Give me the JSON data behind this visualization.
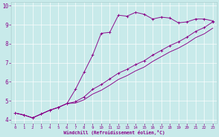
{
  "xlabel": "Windchill (Refroidissement éolien,°C)",
  "bg_color": "#c8eaea",
  "grid_color": "#aacccc",
  "line_color": "#880088",
  "xlim": [
    -0.5,
    23.5
  ],
  "ylim": [
    3.8,
    10.2
  ],
  "xticks": [
    0,
    1,
    2,
    3,
    4,
    5,
    6,
    7,
    8,
    9,
    10,
    11,
    12,
    13,
    14,
    15,
    16,
    17,
    18,
    19,
    20,
    21,
    22,
    23
  ],
  "yticks": [
    4,
    5,
    6,
    7,
    8,
    9,
    10
  ],
  "curve1_x": [
    0,
    1,
    2,
    3,
    4,
    5,
    6,
    7,
    8,
    9,
    10,
    11,
    12,
    13,
    14,
    15,
    16,
    17,
    18,
    19,
    20,
    21,
    22,
    23
  ],
  "curve1_y": [
    4.35,
    4.25,
    4.1,
    4.3,
    4.5,
    4.65,
    4.85,
    5.6,
    6.5,
    7.4,
    8.55,
    8.6,
    9.5,
    9.45,
    9.65,
    9.55,
    9.3,
    9.4,
    9.35,
    9.1,
    9.15,
    9.3,
    9.3,
    9.2
  ],
  "curve2_x": [
    0,
    1,
    2,
    3,
    4,
    5,
    6,
    7,
    8,
    9,
    10,
    11,
    12,
    13,
    14,
    15,
    16,
    17,
    18,
    19,
    20,
    21,
    22,
    23
  ],
  "curve2_y": [
    4.35,
    4.25,
    4.1,
    4.3,
    4.5,
    4.65,
    4.85,
    4.95,
    5.2,
    5.6,
    5.85,
    6.15,
    6.45,
    6.65,
    6.9,
    7.1,
    7.4,
    7.65,
    7.9,
    8.1,
    8.35,
    8.65,
    8.85,
    9.15
  ],
  "curve3_x": [
    0,
    1,
    2,
    3,
    4,
    5,
    6,
    7,
    8,
    9,
    10,
    11,
    12,
    13,
    14,
    15,
    16,
    17,
    18,
    19,
    20,
    21,
    22,
    23
  ],
  "curve3_y": [
    4.35,
    4.25,
    4.1,
    4.3,
    4.5,
    4.65,
    4.85,
    4.88,
    5.05,
    5.35,
    5.55,
    5.82,
    6.12,
    6.32,
    6.57,
    6.77,
    7.07,
    7.32,
    7.57,
    7.77,
    8.02,
    8.32,
    8.52,
    8.82
  ]
}
